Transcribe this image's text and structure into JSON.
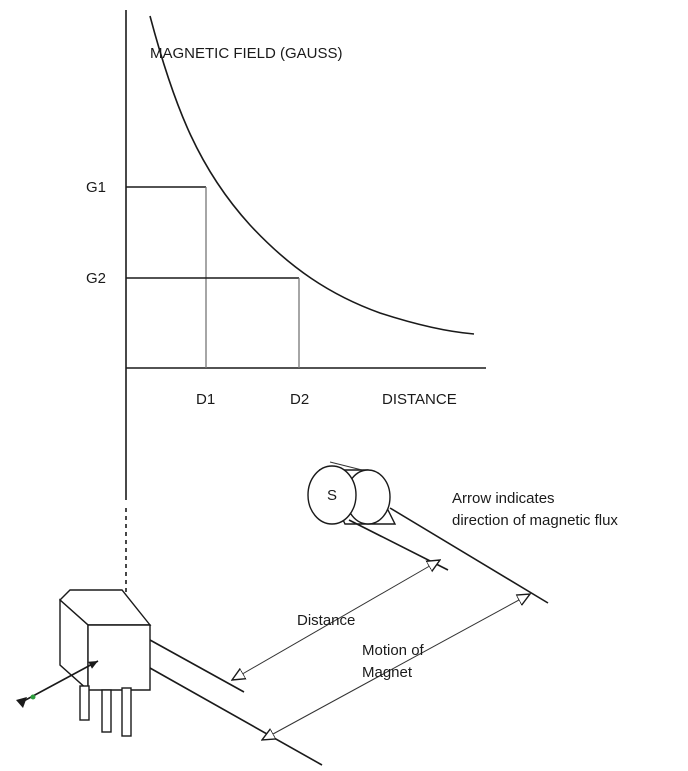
{
  "graph": {
    "y_axis_label": "MAGNETIC FIELD (GAUSS)",
    "x_axis_label": "DISTANCE",
    "y_marks": [
      "G1",
      "G2"
    ],
    "x_marks": [
      "D1",
      "D2"
    ]
  },
  "magnet": {
    "pole_label": "S"
  },
  "annotations": {
    "flux_line1": "Arrow indicates",
    "flux_line2": "direction of magnetic flux",
    "distance": "Distance",
    "motion_line1": "Motion of",
    "motion_line2": "Magnet"
  },
  "colors": {
    "line": "#1a1a1a",
    "flux_arrow_tip": "#2e9e3e"
  }
}
